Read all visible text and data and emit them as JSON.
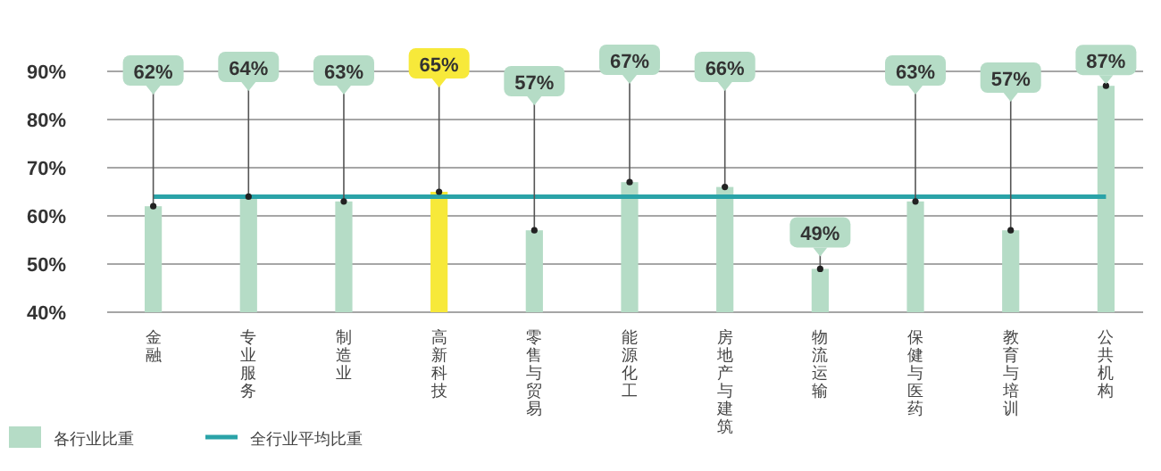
{
  "chart_data": {
    "type": "bar",
    "categories": [
      "金融",
      "专业服务",
      "制造业",
      "高新科技",
      "零售与贸易",
      "能源化工",
      "房地产与建筑",
      "物流运输",
      "保健与医药",
      "教育与培训",
      "公共机构"
    ],
    "series": [
      {
        "name": "各行业比重",
        "color": "#b5dcc6",
        "colors": [
          "#b5dcc6",
          "#b5dcc6",
          "#b5dcc6",
          "#f7e93a",
          "#b5dcc6",
          "#b5dcc6",
          "#b5dcc6",
          "#b5dcc6",
          "#b5dcc6",
          "#b5dcc6",
          "#b5dcc6"
        ],
        "values": [
          62,
          64,
          63,
          65,
          57,
          67,
          66,
          49,
          63,
          57,
          87
        ]
      }
    ],
    "value_labels": [
      "62%",
      "64%",
      "63%",
      "65%",
      "57%",
      "67%",
      "66%",
      "49%",
      "63%",
      "57%",
      "87%"
    ],
    "ref_lines": [
      {
        "axis": "y",
        "value": 64,
        "label": "全行业平均比重",
        "color": "#2aa3a8"
      }
    ],
    "ylim": [
      40,
      90
    ],
    "yticks": [
      {
        "value": 40,
        "label": "40%"
      },
      {
        "value": 50,
        "label": "50%"
      },
      {
        "value": 60,
        "label": "60%"
      },
      {
        "value": 70,
        "label": "70%"
      },
      {
        "value": 80,
        "label": "80%"
      },
      {
        "value": 90,
        "label": "90%"
      }
    ],
    "grid": "y",
    "legend": "bottom"
  }
}
